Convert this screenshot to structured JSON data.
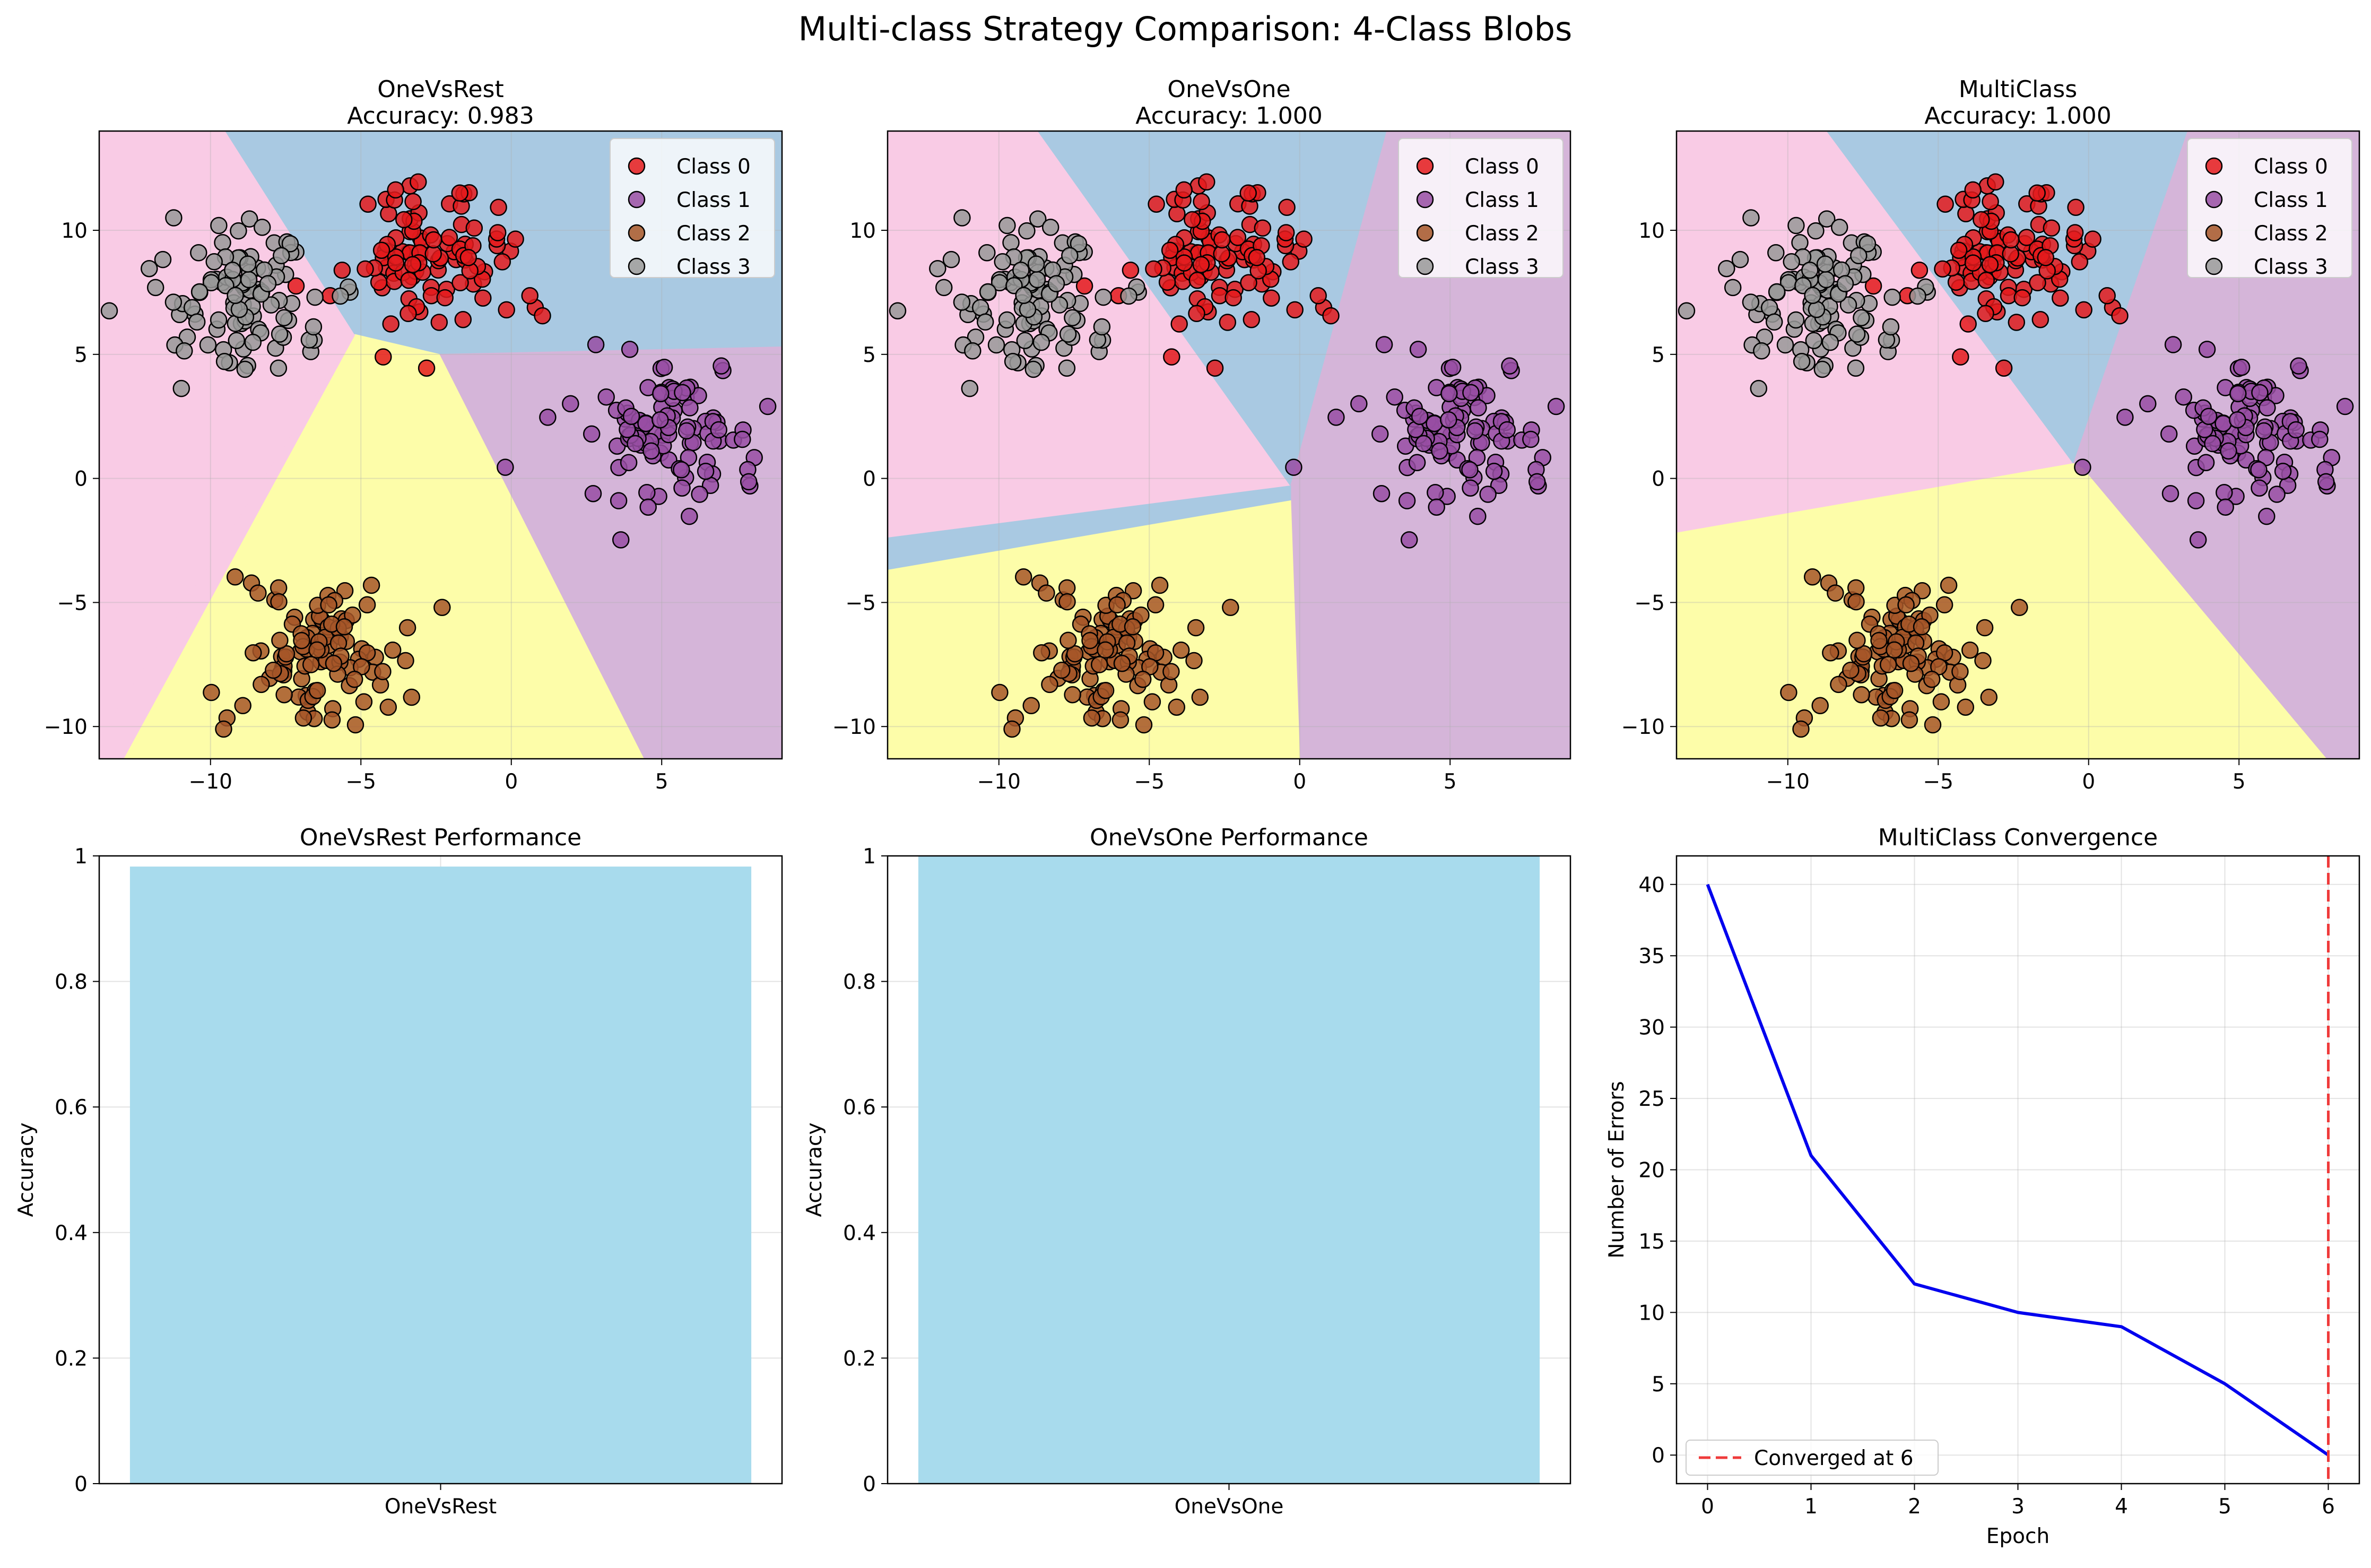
{
  "figure": {
    "title": "Multi-class Strategy Comparison: 4-Class Blobs"
  },
  "colors": {
    "class0": "#e41a1c",
    "class1": "#984ea3",
    "class2": "#a65628",
    "class3": "#999999",
    "region_pink": "#f9cbe5",
    "region_blue": "#a9c9e2",
    "region_purple": "#d5b5d9",
    "region_yellow": "#fdfda9",
    "bar": "#a8dbed",
    "line": "#0000ee",
    "converged": "#ef3b3b"
  },
  "chart_data": [
    {
      "id": "ovr",
      "type": "scatter",
      "title": "OneVsRest",
      "subtitle": "Accuracy: 0.983",
      "xlim": [
        -13.7,
        9.0
      ],
      "ylim": [
        -11.3,
        14.0
      ],
      "xticks": [
        -10,
        -5,
        0,
        5
      ],
      "yticks": [
        -10,
        -5,
        0,
        5,
        10
      ],
      "grid": true,
      "legend_position": "upper right",
      "legend": [
        "Class 0",
        "Class 1",
        "Class 2",
        "Class 3"
      ],
      "regions": [
        {
          "color": "pink",
          "polygon": [
            [
              -13.7,
              14.0
            ],
            [
              -9.5,
              14.0
            ],
            [
              -5.2,
              5.8
            ],
            [
              -13.7,
              -10.5
            ]
          ]
        },
        {
          "color": "blue",
          "polygon": [
            [
              -9.5,
              14.0
            ],
            [
              9.0,
              14.0
            ],
            [
              9.0,
              5.3
            ],
            [
              -2.4,
              5.0
            ],
            [
              -5.2,
              5.8
            ]
          ]
        },
        {
          "color": "purple",
          "polygon": [
            [
              -2.4,
              5.0
            ],
            [
              9.0,
              5.3
            ],
            [
              9.0,
              -11.3
            ],
            [
              4.4,
              -11.3
            ]
          ]
        },
        {
          "color": "yellow",
          "polygon": [
            [
              -5.2,
              5.8
            ],
            [
              -2.4,
              5.0
            ],
            [
              4.4,
              -11.3
            ],
            [
              -12.9,
              -11.3
            ]
          ]
        },
        {
          "color": "pink",
          "polygon": [
            [
              -13.7,
              -10.5
            ],
            [
              -5.2,
              5.8
            ],
            [
              -12.9,
              -11.3
            ],
            [
              -13.7,
              -11.3
            ]
          ]
        }
      ]
    },
    {
      "id": "ovo",
      "type": "scatter",
      "title": "OneVsOne",
      "subtitle": "Accuracy: 1.000",
      "xlim": [
        -13.7,
        9.0
      ],
      "ylim": [
        -11.3,
        14.0
      ],
      "xticks": [
        -10,
        -5,
        0,
        5
      ],
      "yticks": [
        -10,
        -5,
        0,
        5,
        10
      ],
      "grid": true,
      "legend_position": "upper right",
      "legend": [
        "Class 0",
        "Class 1",
        "Class 2",
        "Class 3"
      ],
      "regions": [
        {
          "color": "pink",
          "polygon": [
            [
              -13.7,
              14.0
            ],
            [
              -8.7,
              14.0
            ],
            [
              -0.3,
              -0.3
            ],
            [
              -13.7,
              -2.4
            ]
          ]
        },
        {
          "color": "blue",
          "polygon": [
            [
              -8.7,
              14.0
            ],
            [
              2.9,
              14.0
            ],
            [
              -0.3,
              -0.3
            ]
          ]
        },
        {
          "color": "purple",
          "polygon": [
            [
              2.9,
              14.0
            ],
            [
              9.0,
              14.0
            ],
            [
              9.0,
              -11.3
            ],
            [
              0.0,
              -11.3
            ],
            [
              -0.3,
              -0.3
            ]
          ]
        },
        {
          "color": "blue",
          "polygon": [
            [
              -13.7,
              -2.4
            ],
            [
              -0.3,
              -0.3
            ],
            [
              -0.3,
              -0.9
            ],
            [
              -13.7,
              -3.7
            ]
          ]
        },
        {
          "color": "yellow",
          "polygon": [
            [
              -13.7,
              -3.7
            ],
            [
              -0.3,
              -0.9
            ],
            [
              0.0,
              -11.3
            ],
            [
              -13.7,
              -11.3
            ]
          ]
        }
      ]
    },
    {
      "id": "mc",
      "type": "scatter",
      "title": "MultiClass",
      "subtitle": "Accuracy: 1.000",
      "xlim": [
        -13.7,
        9.0
      ],
      "ylim": [
        -11.3,
        14.0
      ],
      "xticks": [
        -10,
        -5,
        0,
        5
      ],
      "yticks": [
        -10,
        -5,
        0,
        5,
        10
      ],
      "grid": true,
      "legend_position": "upper right",
      "legend": [
        "Class 0",
        "Class 1",
        "Class 2",
        "Class 3"
      ],
      "regions": [
        {
          "color": "pink",
          "polygon": [
            [
              -13.7,
              14.0
            ],
            [
              -8.7,
              14.0
            ],
            [
              -0.5,
              0.6
            ],
            [
              -13.7,
              -2.2
            ]
          ]
        },
        {
          "color": "blue",
          "polygon": [
            [
              -8.7,
              14.0
            ],
            [
              3.3,
              14.0
            ],
            [
              -0.5,
              0.6
            ]
          ]
        },
        {
          "color": "purple",
          "polygon": [
            [
              3.3,
              14.0
            ],
            [
              9.0,
              14.0
            ],
            [
              9.0,
              -11.3
            ],
            [
              7.9,
              -11.3
            ],
            [
              -0.2,
              0.4
            ],
            [
              -0.5,
              0.6
            ]
          ]
        },
        {
          "color": "yellow",
          "polygon": [
            [
              -13.7,
              -2.2
            ],
            [
              -0.5,
              0.6
            ],
            [
              -0.2,
              0.4
            ],
            [
              7.9,
              -11.3
            ],
            [
              -13.7,
              -11.3
            ]
          ]
        }
      ]
    },
    {
      "id": "ovr_perf",
      "type": "bar",
      "title": "OneVsRest Performance",
      "categories": [
        "OneVsRest"
      ],
      "values": [
        0.983
      ],
      "ylabel": "Accuracy",
      "ylim": [
        0,
        1
      ],
      "yticks": [
        0.0,
        0.2,
        0.4,
        0.6,
        0.8,
        1.0
      ],
      "grid": true
    },
    {
      "id": "ovo_perf",
      "type": "bar",
      "title": "OneVsOne Performance",
      "categories": [
        "OneVsOne"
      ],
      "values": [
        1.0
      ],
      "ylabel": "Accuracy",
      "ylim": [
        0,
        1
      ],
      "yticks": [
        0.0,
        0.2,
        0.4,
        0.6,
        0.8,
        1.0
      ],
      "grid": true
    },
    {
      "id": "mc_conv",
      "type": "line",
      "title": "MultiClass Convergence",
      "x": [
        0,
        1,
        2,
        3,
        4,
        5,
        6
      ],
      "y": [
        40,
        21,
        12,
        10,
        9,
        5,
        0
      ],
      "xlabel": "Epoch",
      "ylabel": "Number of Errors",
      "xlim": [
        -0.3,
        6.3
      ],
      "ylim": [
        -2,
        42
      ],
      "xticks": [
        0,
        1,
        2,
        3,
        4,
        5,
        6
      ],
      "yticks": [
        0,
        5,
        10,
        15,
        20,
        25,
        30,
        35,
        40
      ],
      "grid": true,
      "vline": {
        "x": 6,
        "label": "Converged at 6"
      },
      "legend_position": "lower left"
    }
  ]
}
